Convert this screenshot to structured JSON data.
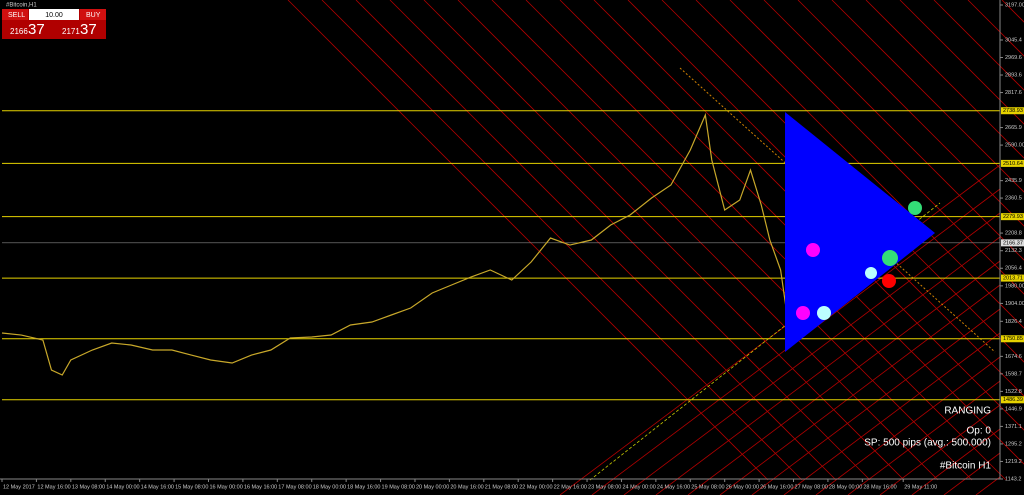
{
  "window": {
    "title": "#Bitcoin,H1"
  },
  "trade_panel": {
    "sell": "SELL",
    "buy": "BUY",
    "lots": "10.00",
    "sell_big": "2166",
    "sell_small": "37",
    "buy_big": "2171",
    "buy_small": "37"
  },
  "annotations": {
    "state": "RANGING",
    "ops": "Op: 0",
    "spread": "SP: 500 pips  (avg.: 500.000)",
    "symbol": "#Bitcoin H1"
  },
  "chart_data": {
    "type": "line",
    "color": "#c8a82a",
    "x": [
      0,
      9,
      19,
      23,
      28,
      32,
      42,
      51,
      60,
      70,
      79,
      88,
      97,
      107,
      116,
      125,
      134,
      144,
      153,
      162,
      172,
      181,
      190,
      200,
      209,
      218,
      227,
      237,
      246,
      255,
      264,
      274,
      283,
      292,
      302,
      311,
      320,
      327,
      330,
      336,
      343,
      348,
      353,
      357,
      362,
      366,
      371,
      376,
      381,
      385,
      390,
      394,
      399,
      404,
      408,
      413,
      417,
      420
    ],
    "values": [
      1775.8,
      1767,
      1745.4,
      1615.4,
      1593.7,
      1658.8,
      1702.1,
      1732.4,
      1723.8,
      1702.1,
      1702.1,
      1680.4,
      1658.8,
      1645.8,
      1680.4,
      1702.1,
      1754.1,
      1758.4,
      1767,
      1810.4,
      1823.4,
      1853.8,
      1884.1,
      1949.1,
      1983.8,
      2018.4,
      2048.8,
      2005.4,
      2083.4,
      2187.4,
      2157,
      2178.7,
      2243.7,
      2287.1,
      2360.7,
      2417.1,
      2568.7,
      2720.4,
      2525.4,
      2308.7,
      2352,
      2482,
      2330.4,
      2178.7,
      2048.8,
      1788.8,
      1875.4,
      1832.1,
      1918.8,
      1853.8,
      1962.1,
      2005.4,
      1983.8,
      2040.1,
      2027.1,
      2083.4,
      2113.7,
      2166.4
    ],
    "xlim": [
      0,
      464
    ],
    "xticks": [
      {
        "value": 0,
        "label": "12 May 2017"
      },
      {
        "value": 16,
        "label": "12 May 16:00"
      },
      {
        "value": 32,
        "label": "13 May 08:00"
      },
      {
        "value": 48,
        "label": "14 May 00:00"
      },
      {
        "value": 64,
        "label": "14 May 16:00"
      },
      {
        "value": 80,
        "label": "15 May 08:00"
      },
      {
        "value": 96,
        "label": "16 May 00:00"
      },
      {
        "value": 112,
        "label": "16 May 16:00"
      },
      {
        "value": 128,
        "label": "17 May 08:00"
      },
      {
        "value": 144,
        "label": "18 May 00:00"
      },
      {
        "value": 160,
        "label": "18 May 16:00"
      },
      {
        "value": 176,
        "label": "19 May 08:00"
      },
      {
        "value": 192,
        "label": "20 May 00:00"
      },
      {
        "value": 208,
        "label": "20 May 16:00"
      },
      {
        "value": 224,
        "label": "21 May 08:00"
      },
      {
        "value": 240,
        "label": "22 May 00:00"
      },
      {
        "value": 256,
        "label": "22 May 16:00"
      },
      {
        "value": 272,
        "label": "23 May 08:00"
      },
      {
        "value": 288,
        "label": "24 May 00:00"
      },
      {
        "value": 304,
        "label": "24 May 16:00"
      },
      {
        "value": 320,
        "label": "25 May 08:00"
      },
      {
        "value": 336,
        "label": "26 May 00:00"
      },
      {
        "value": 352,
        "label": "26 May 16:00"
      },
      {
        "value": 368,
        "label": "27 May 08:00"
      },
      {
        "value": 384,
        "label": "28 May 00:00"
      },
      {
        "value": 400,
        "label": "28 May 16:00"
      },
      {
        "value": 419,
        "label": "29 May 11:00"
      }
    ],
    "ylim": [
      1143.2,
      3197.0
    ],
    "yticks": [
      {
        "value": 3197,
        "label": "3197.00"
      },
      3045.4,
      2969.6,
      2893.6,
      2817.6,
      2665.9,
      {
        "value": 2590,
        "label": "2590.00"
      },
      2435.9,
      2360.5,
      2208.8,
      2132.3,
      2056.4,
      {
        "value": 1980,
        "label": "1980.00"
      },
      {
        "value": 1904,
        "label": "1904.00"
      },
      1826.4,
      1674.6,
      1598.7,
      1522.8,
      1446.9,
      1371.1,
      1295.2,
      1219.2,
      1143.2
    ],
    "levels": [
      2738.93,
      2510.64,
      2279.93,
      2013.71,
      1750.85,
      1486.39
    ],
    "level_color": "#e6d200",
    "current": 2166.37
  }
}
